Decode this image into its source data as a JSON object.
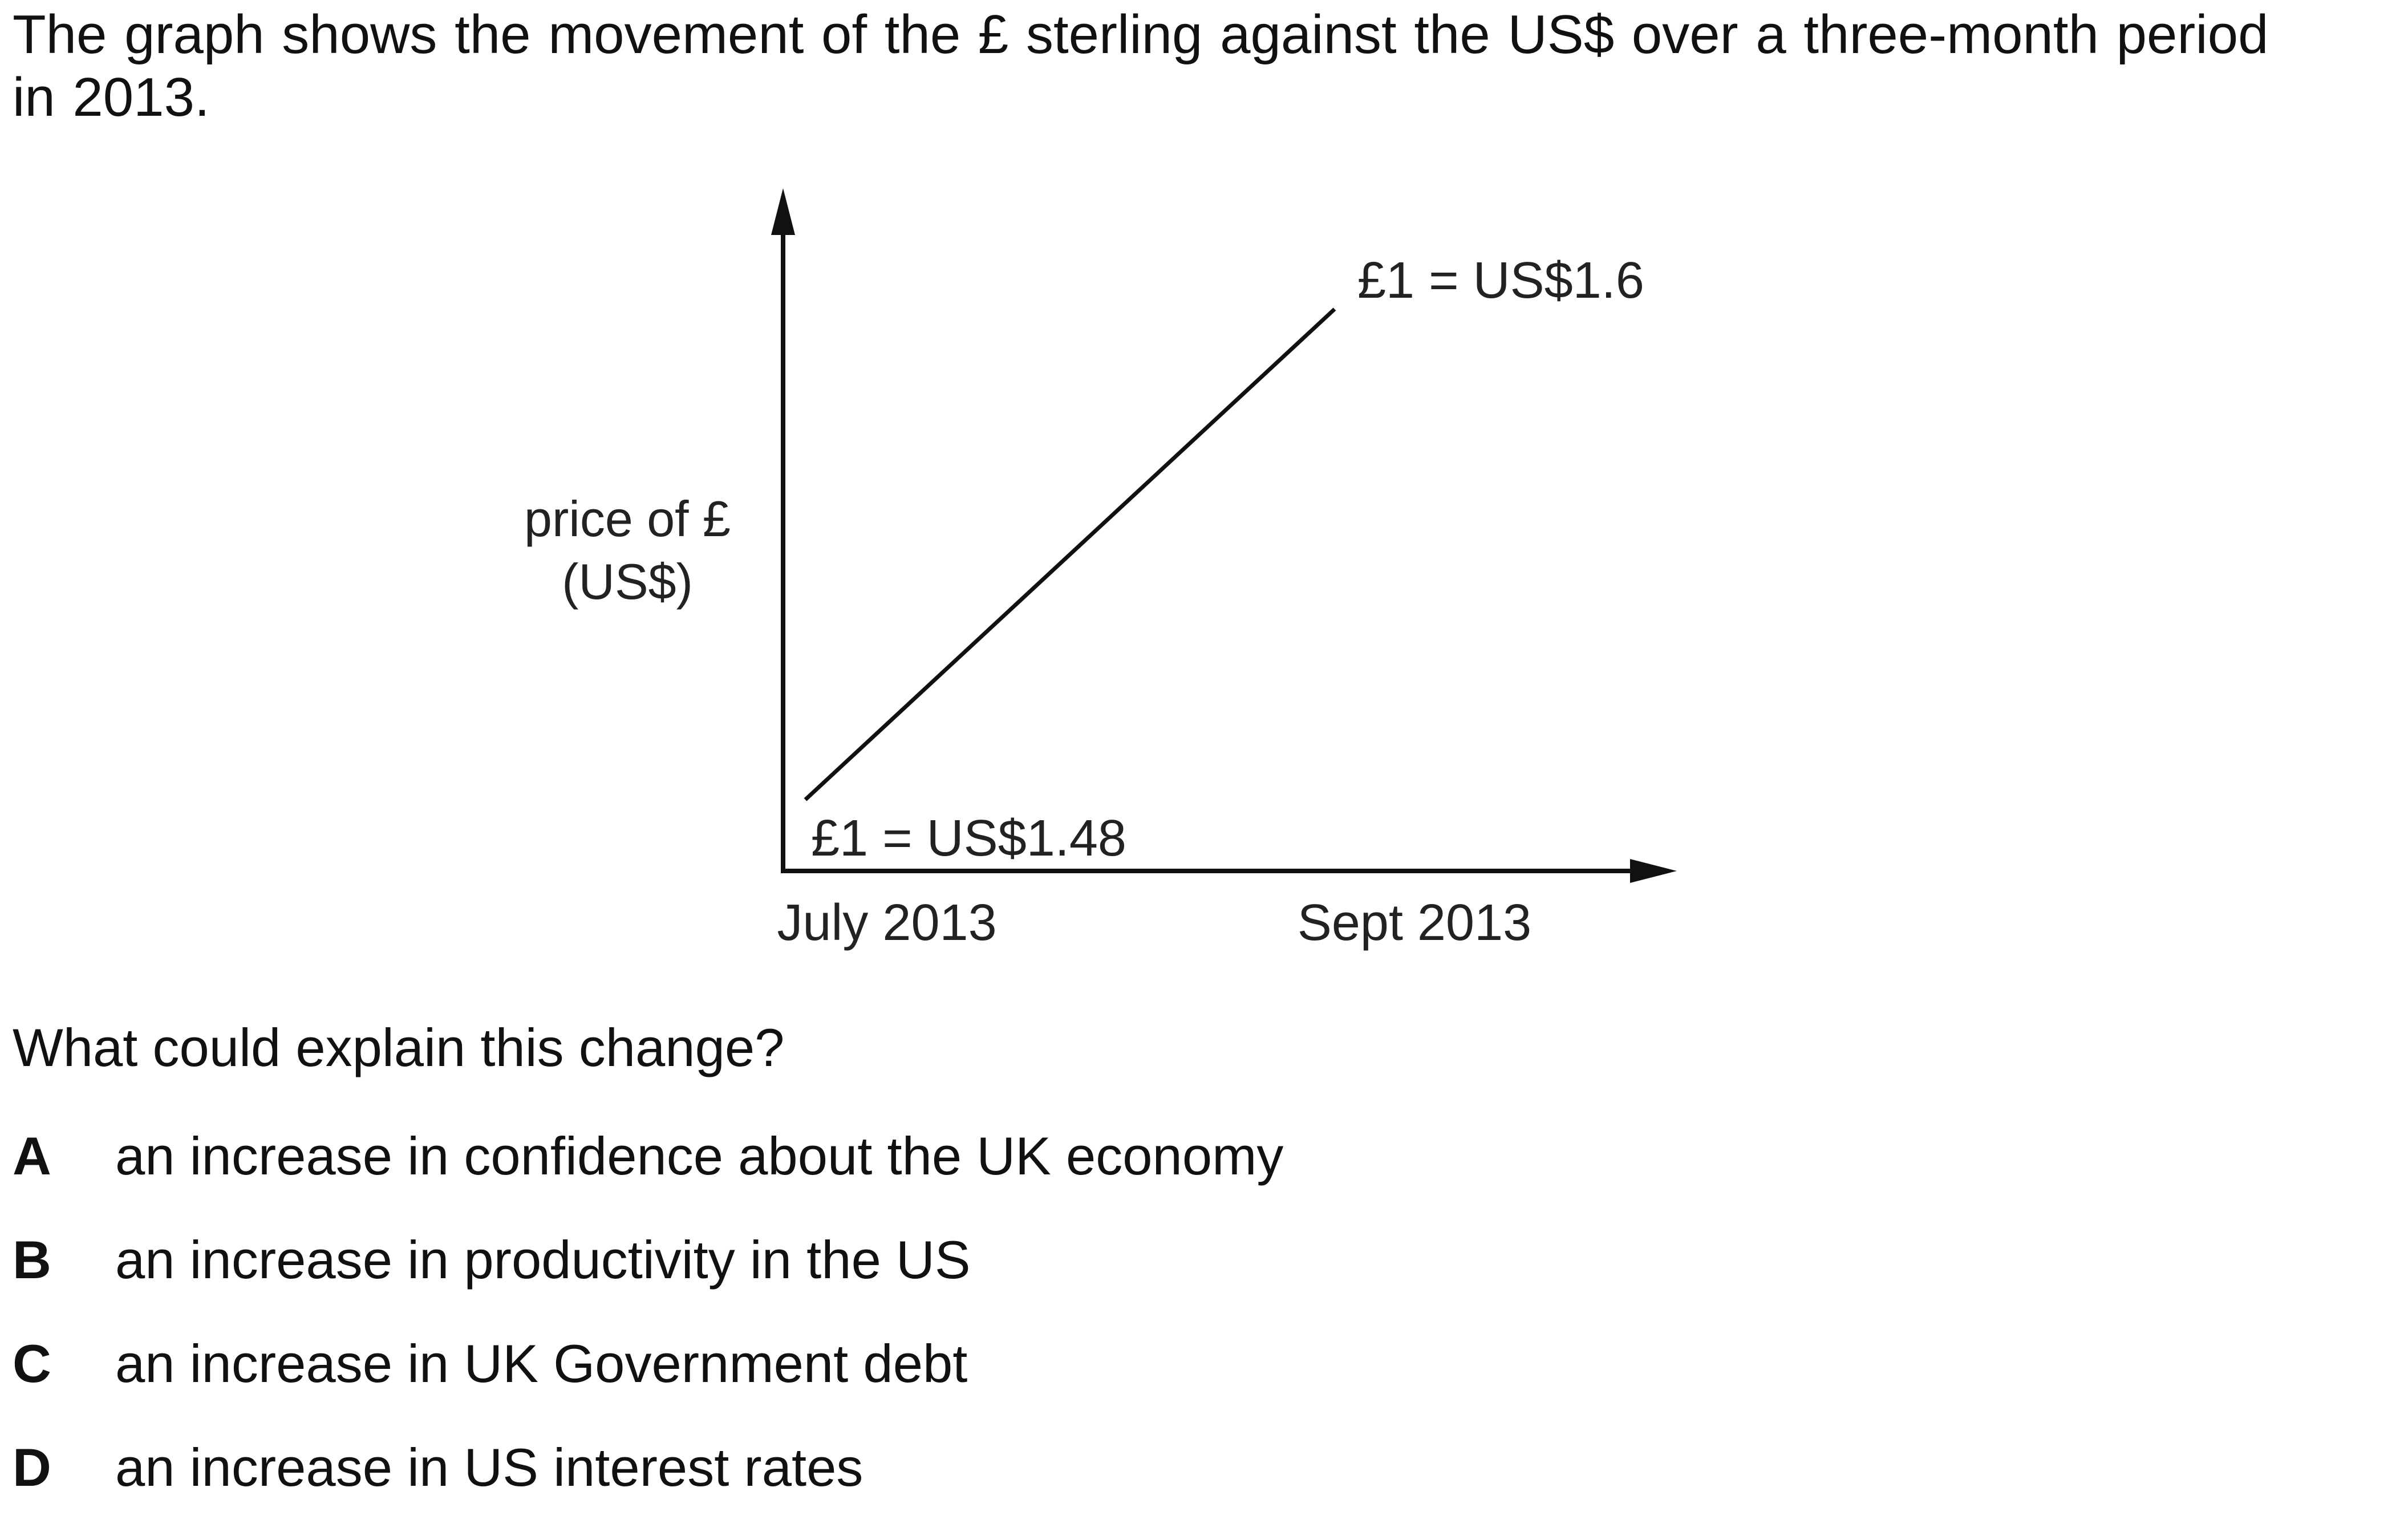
{
  "intro": "The graph shows the movement of the £ sterling against the US$ over a three-month period in 2013.",
  "chart_data": {
    "type": "line",
    "ylabel_line1": "price of £",
    "ylabel_line2": "(US$)",
    "x": [
      "July 2013",
      "Sept 2013"
    ],
    "values": [
      1.48,
      1.6
    ],
    "annotations": [
      "£1 = US$1.48",
      "£1 = US$1.6"
    ]
  },
  "question": "What could explain this change?",
  "options": [
    {
      "letter": "A",
      "text": "an increase in confidence about the UK economy"
    },
    {
      "letter": "B",
      "text": "an increase in productivity in the US"
    },
    {
      "letter": "C",
      "text": "an increase in UK Government debt"
    },
    {
      "letter": "D",
      "text": "an increase in US interest rates"
    }
  ]
}
